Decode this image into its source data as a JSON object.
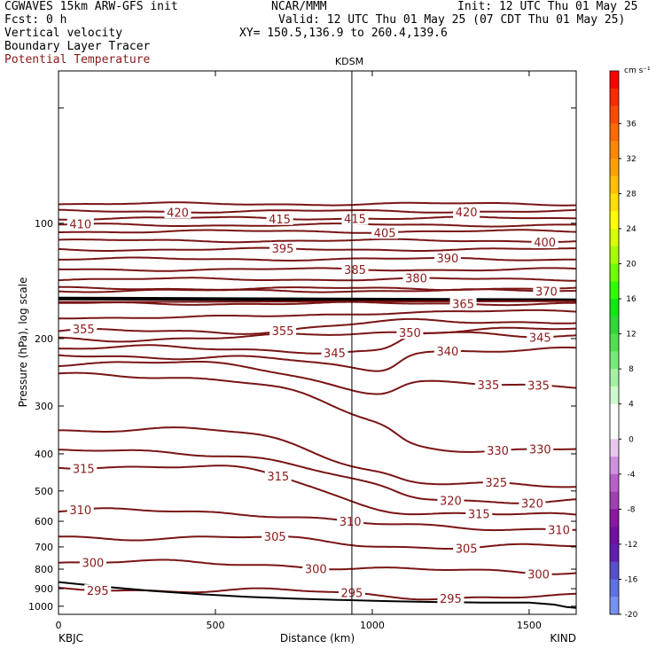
{
  "header": {
    "line1_left": "CGWAVES 15km ARW-GFS init",
    "line1_mid": "NCAR/MMM",
    "line1_right": "Init: 12 UTC Thu 01 May 25",
    "line2_left": "Fcst:    0 h",
    "line2_right": "Valid: 12 UTC Thu 01 May 25 (07 CDT Thu 01 May 25)",
    "line3_left": "Vertical velocity",
    "line3_right": "XY= 150.5,136.9 to 260.4,139.6",
    "line4_left": "Boundary Layer Tracer",
    "line5_left": "Potential Temperature"
  },
  "chart_data": {
    "type": "line",
    "title": "KDSM",
    "xlabel": "Distance (km)",
    "ylabel": "Pressure (hPa), log scale",
    "x_ticks": [
      0,
      500,
      1000,
      1500
    ],
    "xlim": [
      0,
      1650
    ],
    "y_ticks": [
      100,
      200,
      300,
      400,
      500,
      600,
      700,
      800,
      900,
      1000
    ],
    "ylim": [
      1050,
      40
    ],
    "y_scale": "log",
    "left_end_label": "KBJC",
    "right_end_label": "KIND",
    "station_marker": {
      "name": "KDSM",
      "x_km": 935
    },
    "colorbar": {
      "unit": "cm s⁻¹",
      "tick_labels": [
        "36",
        "32",
        "28",
        "24",
        "20",
        "16",
        "12",
        "8",
        "4",
        "0",
        "-4",
        "-8",
        "-12",
        "-16",
        "-20"
      ],
      "colors": [
        "#ff0000",
        "#ff2a00",
        "#ff4a00",
        "#ff6a00",
        "#ff8800",
        "#ffa000",
        "#ffc000",
        "#ffdf00",
        "#ffff00",
        "#d8ff00",
        "#a8ff00",
        "#70ff00",
        "#30ff00",
        "#10ea10",
        "#30d838",
        "#50e050",
        "#78ea78",
        "#a6f0a6",
        "#d0f8d0",
        "#ffffff",
        "#ffffff",
        "#e8c8ee",
        "#d090e0",
        "#b860c8",
        "#a040b0",
        "#8818a0",
        "#7010a0",
        "#6020b0",
        "#5850c8",
        "#6070e0",
        "#7890f0"
      ]
    },
    "isentropes": [
      {
        "theta": 295,
        "label_x": [
          125,
          935,
          1250
        ]
      },
      {
        "theta": 300,
        "label_x": [
          110,
          820,
          1530
        ]
      },
      {
        "theta": 305,
        "label_x": [
          690,
          1300
        ]
      },
      {
        "theta": 310,
        "label_x": [
          70,
          930,
          1595
        ]
      },
      {
        "theta": 315,
        "label_x": [
          80,
          700,
          1340
        ]
      },
      {
        "theta": 320,
        "label_x": [
          1250,
          1510
        ]
      },
      {
        "theta": 325,
        "label_x": [
          1395
        ]
      },
      {
        "theta": 330,
        "label_x": [
          1400,
          1535
        ]
      },
      {
        "theta": 335,
        "label_x": [
          1370,
          1530
        ]
      },
      {
        "theta": 340,
        "label_x": [
          1240
        ]
      },
      {
        "theta": 345,
        "label_x": [
          880,
          1535
        ]
      },
      {
        "theta": 350,
        "label_x": [
          1120
        ]
      },
      {
        "theta": 355,
        "label_x": [
          80,
          715
        ]
      },
      {
        "theta": 365,
        "label_x": [
          1290
        ]
      },
      {
        "theta": 370,
        "label_x": [
          1555
        ]
      },
      {
        "theta": 380,
        "label_x": [
          1140
        ]
      },
      {
        "theta": 385,
        "label_x": [
          945
        ]
      },
      {
        "theta": 390,
        "label_x": [
          1240
        ]
      },
      {
        "theta": 395,
        "label_x": [
          715
        ]
      },
      {
        "theta": 400,
        "label_x": [
          1550
        ]
      },
      {
        "theta": 405,
        "label_x": [
          1040
        ]
      },
      {
        "theta": 410,
        "label_x": [
          70
        ]
      },
      {
        "theta": 415,
        "label_x": [
          705,
          945
        ]
      },
      {
        "theta": 420,
        "label_x": [
          380,
          1300
        ]
      }
    ],
    "boundary_layer_top_hpa": [
      [
        0,
        865
      ],
      [
        150,
        890
      ],
      [
        300,
        912
      ],
      [
        450,
        930
      ],
      [
        600,
        945
      ],
      [
        750,
        955
      ],
      [
        900,
        963
      ],
      [
        1050,
        970
      ],
      [
        1200,
        975
      ],
      [
        1350,
        978
      ],
      [
        1500,
        978
      ],
      [
        1580,
        990
      ],
      [
        1620,
        1005
      ],
      [
        1650,
        1010
      ]
    ],
    "tropopause_hpa": 158
  }
}
